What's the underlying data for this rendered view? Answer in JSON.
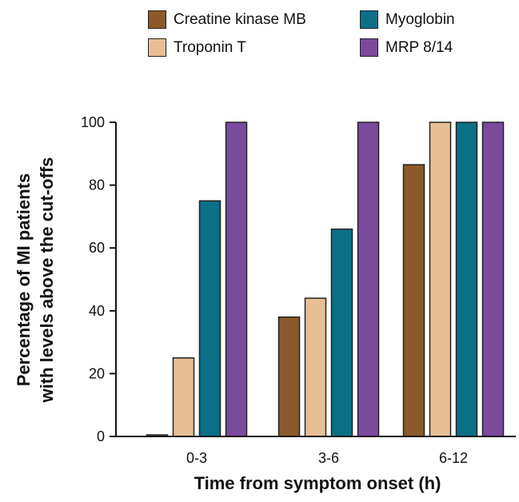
{
  "chart_data": {
    "type": "bar",
    "title": "",
    "categories": [
      "0-3",
      "3-6",
      "6-12"
    ],
    "series": [
      {
        "name": "Creatine kinase MB",
        "color": "#8a5a2b",
        "values": [
          0.5,
          38,
          86.5
        ]
      },
      {
        "name": "Troponin T",
        "color": "#e8bf94",
        "values": [
          25,
          44,
          100
        ]
      },
      {
        "name": "Myoglobin",
        "color": "#0b6f86",
        "values": [
          75,
          66,
          100
        ]
      },
      {
        "name": "MRP 8/14",
        "color": "#7a4a9c",
        "values": [
          100,
          100,
          100
        ]
      }
    ],
    "ylim": [
      0,
      100
    ],
    "yticks": [
      0,
      20,
      40,
      60,
      80,
      100
    ],
    "ylabel_line1": "Percentage of MI patients",
    "ylabel_line2": "with levels above the cut-offs",
    "xlabel": "Time from symptom onset (h)",
    "grid": false,
    "legend_position": "top"
  }
}
